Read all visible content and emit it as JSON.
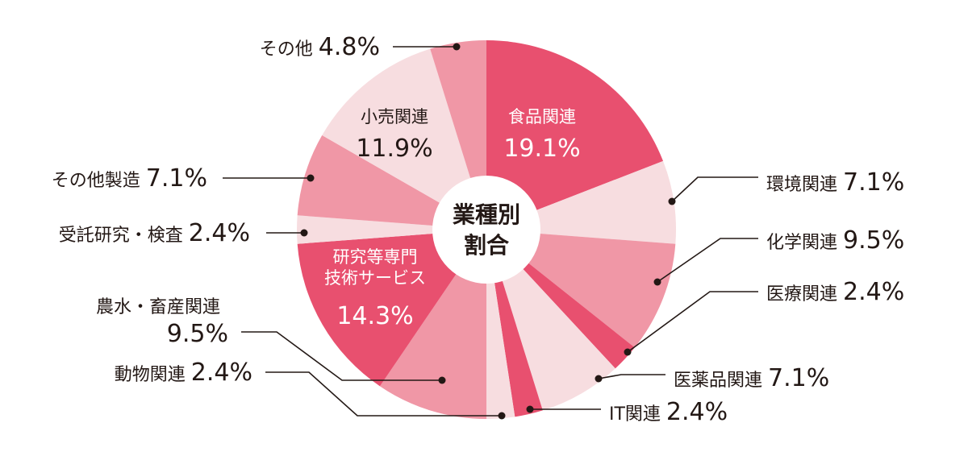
{
  "chart_data": {
    "type": "pie",
    "center_label": [
      "業種別",
      "割合"
    ],
    "start_angle_deg": 0,
    "direction": "clockwise",
    "unit": "%",
    "slices": [
      {
        "label": "食品関連",
        "value": 19.1,
        "color": "#e8506f",
        "label_position": "inside",
        "text_color": "#ffffff"
      },
      {
        "label": "環境関連",
        "value": 7.1,
        "color": "#f7dde0",
        "label_position": "outside-right"
      },
      {
        "label": "化学関連",
        "value": 9.5,
        "color": "#f097a6",
        "label_position": "outside-right"
      },
      {
        "label": "医療関連",
        "value": 2.4,
        "color": "#e8506f",
        "label_position": "outside-right"
      },
      {
        "label": "医薬品関連",
        "value": 7.1,
        "color": "#f7dde0",
        "label_position": "outside-right"
      },
      {
        "label": "IT関連",
        "value": 2.4,
        "color": "#e8506f",
        "label_position": "outside-right"
      },
      {
        "label": "動物関連",
        "value": 2.4,
        "color": "#f7dde0",
        "label_position": "outside-left"
      },
      {
        "label": "農水・畜産関連",
        "value": 9.5,
        "color": "#f097a6",
        "label_position": "outside-left"
      },
      {
        "label": "研究等専門\n技術サービス",
        "value": 14.3,
        "color": "#e8506f",
        "label_position": "inside",
        "text_color": "#ffffff"
      },
      {
        "label": "受託研究・検査",
        "value": 2.4,
        "color": "#f7dde0",
        "label_position": "outside-left"
      },
      {
        "label": "その他製造",
        "value": 7.1,
        "color": "#f097a6",
        "label_position": "outside-left"
      },
      {
        "label": "小売関連",
        "value": 11.9,
        "color": "#f7dde0",
        "label_position": "inside",
        "text_color": "#231815"
      },
      {
        "label": "その他",
        "value": 4.8,
        "color": "#f097a6",
        "label_position": "outside-left"
      }
    ]
  }
}
